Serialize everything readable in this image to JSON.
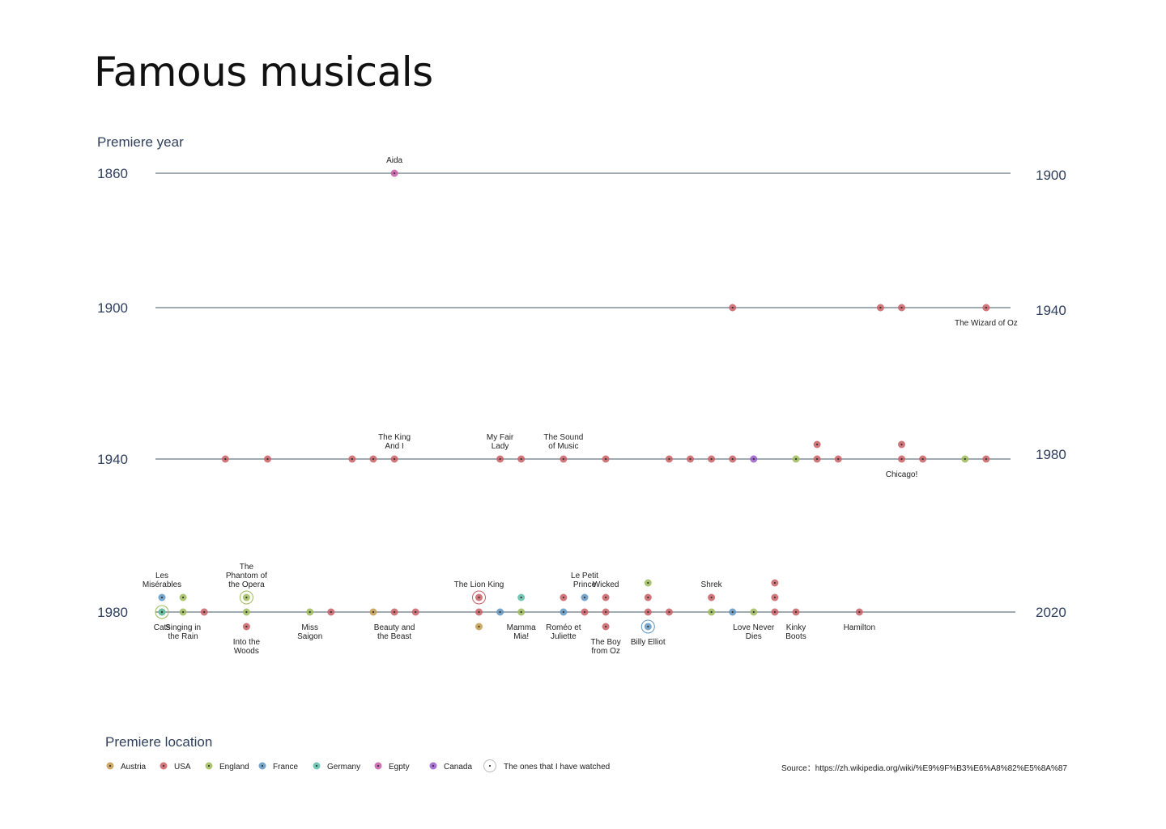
{
  "title": "Famous musicals",
  "source": "Source：https://zh.wikipedia.org/wiki/%E9%9F%B3%E6%A8%82%E5%8A%87",
  "colors": {
    "Austria": "#c49a4e",
    "USA": "#c95f64",
    "England": "#9cbb5b",
    "France": "#5f97c4",
    "Germany": "#5dbca8",
    "Egpty": "#c75ba6",
    "Canada": "#9a5bc8",
    "watched": "#bbbbbb",
    "axis": "#6b7785",
    "text": "#2f3f5c"
  },
  "chart_data": {
    "type": "scatter",
    "title": "Famous musicals",
    "ylabel": "Premiere year",
    "legend_title": "Premiere location",
    "legend_position": "bottom-left",
    "legend": [
      {
        "name": "Austria",
        "color": "#c49a4e"
      },
      {
        "name": "USA",
        "color": "#c95f64"
      },
      {
        "name": "England",
        "color": "#9cbb5b"
      },
      {
        "name": "France",
        "color": "#5f97c4"
      },
      {
        "name": "Germany",
        "color": "#5dbca8"
      },
      {
        "name": "Egpty",
        "color": "#c75ba6"
      },
      {
        "name": "Canada",
        "color": "#9a5bc8"
      },
      {
        "name": "The ones that I have watched",
        "color": "#bbbbbb",
        "ring": true
      }
    ],
    "rows": [
      {
        "start": 1860,
        "end": 1900
      },
      {
        "start": 1900,
        "end": 1940
      },
      {
        "start": 1940,
        "end": 1980
      },
      {
        "start": 1980,
        "end": 2020
      }
    ],
    "points": [
      {
        "year": 1871,
        "stack": 0,
        "loc": "Egpty",
        "name": "Aida",
        "label_pos": "above"
      },
      {
        "year": 1927,
        "stack": 0,
        "loc": "USA"
      },
      {
        "year": 1934,
        "stack": 0,
        "loc": "USA"
      },
      {
        "year": 1935,
        "stack": 0,
        "loc": "USA"
      },
      {
        "year": 1939,
        "stack": 0,
        "loc": "USA",
        "name": "The Wizard of Oz",
        "label_pos": "below"
      },
      {
        "year": 1943,
        "stack": 0,
        "loc": "USA"
      },
      {
        "year": 1945,
        "stack": 0,
        "loc": "USA"
      },
      {
        "year": 1949,
        "stack": 0,
        "loc": "USA"
      },
      {
        "year": 1950,
        "stack": 0,
        "loc": "USA"
      },
      {
        "year": 1951,
        "stack": 0,
        "loc": "USA",
        "name": "The King\nAnd I",
        "label_pos": "above"
      },
      {
        "year": 1956,
        "stack": 0,
        "loc": "USA",
        "name": "My Fair\nLady",
        "label_pos": "above"
      },
      {
        "year": 1957,
        "stack": 0,
        "loc": "USA"
      },
      {
        "year": 1959,
        "stack": 0,
        "loc": "USA",
        "name": "The Sound\nof Music",
        "label_pos": "above"
      },
      {
        "year": 1961,
        "stack": 0,
        "loc": "USA"
      },
      {
        "year": 1964,
        "stack": 0,
        "loc": "USA"
      },
      {
        "year": 1965,
        "stack": 0,
        "loc": "USA"
      },
      {
        "year": 1966,
        "stack": 0,
        "loc": "USA"
      },
      {
        "year": 1967,
        "stack": 0,
        "loc": "USA"
      },
      {
        "year": 1968,
        "stack": 0,
        "loc": "Canada"
      },
      {
        "year": 1970,
        "stack": 0,
        "loc": "England"
      },
      {
        "year": 1971,
        "stack": 0,
        "loc": "USA"
      },
      {
        "year": 1971,
        "stack": 1,
        "loc": "USA"
      },
      {
        "year": 1972,
        "stack": 0,
        "loc": "USA"
      },
      {
        "year": 1975,
        "stack": 0,
        "loc": "USA",
        "name": "Chicago!",
        "label_pos": "below"
      },
      {
        "year": 1975,
        "stack": 1,
        "loc": "USA"
      },
      {
        "year": 1976,
        "stack": 0,
        "loc": "USA"
      },
      {
        "year": 1978,
        "stack": 0,
        "loc": "England"
      },
      {
        "year": 1979,
        "stack": 0,
        "loc": "USA"
      },
      {
        "year": 1980,
        "stack": 0,
        "loc": "England",
        "watched": true,
        "name": "Cats",
        "label_pos": "below"
      },
      {
        "year": 1980,
        "stack": 1,
        "loc": "France",
        "name": "Les\nMisérables",
        "label_pos": "above"
      },
      {
        "year": 1980,
        "stack": 0,
        "loc": "Germany"
      },
      {
        "year": 1981,
        "stack": 0,
        "loc": "England",
        "name": "Singing in\nthe Rain",
        "label_pos": "below"
      },
      {
        "year": 1981,
        "stack": 1,
        "loc": "England"
      },
      {
        "year": 1982,
        "stack": 0,
        "loc": "USA"
      },
      {
        "year": 1984,
        "stack": 0,
        "loc": "England"
      },
      {
        "year": 1984,
        "stack": 1,
        "loc": "England",
        "watched": true,
        "name": "The\nPhantom of\nthe Opera",
        "label_pos": "above"
      },
      {
        "year": 1984,
        "stack": -1,
        "loc": "USA",
        "name": "Into the\nWoods",
        "label_pos": "below"
      },
      {
        "year": 1987,
        "stack": 0,
        "loc": "England",
        "name": "Miss\nSaigon",
        "label_pos": "below"
      },
      {
        "year": 1988,
        "stack": 0,
        "loc": "USA"
      },
      {
        "year": 1990,
        "stack": 0,
        "loc": "Austria"
      },
      {
        "year": 1991,
        "stack": 0,
        "loc": "USA",
        "name": "Beauty and\nthe Beast",
        "label_pos": "below"
      },
      {
        "year": 1992,
        "stack": 0,
        "loc": "USA"
      },
      {
        "year": 1995,
        "stack": 0,
        "loc": "USA"
      },
      {
        "year": 1995,
        "stack": 1,
        "loc": "USA",
        "watched": true,
        "name": "The Lion King",
        "label_pos": "above"
      },
      {
        "year": 1995,
        "stack": -1,
        "loc": "Austria"
      },
      {
        "year": 1996,
        "stack": 0,
        "loc": "France"
      },
      {
        "year": 1997,
        "stack": 0,
        "loc": "England",
        "name": "Mamma\nMia!",
        "label_pos": "below"
      },
      {
        "year": 1997,
        "stack": 1,
        "loc": "Germany"
      },
      {
        "year": 1999,
        "stack": 0,
        "loc": "France",
        "name": "Roméo et\nJuliette",
        "label_pos": "below"
      },
      {
        "year": 1999,
        "stack": 1,
        "loc": "USA"
      },
      {
        "year": 2000,
        "stack": 0,
        "loc": "USA"
      },
      {
        "year": 2000,
        "stack": 1,
        "loc": "France",
        "name": "Le Petit\nPrince",
        "label_pos": "above"
      },
      {
        "year": 2001,
        "stack": 0,
        "loc": "USA"
      },
      {
        "year": 2001,
        "stack": 1,
        "loc": "USA",
        "name": "Wicked",
        "label_pos": "above"
      },
      {
        "year": 2001,
        "stack": -1,
        "loc": "USA",
        "name": "The Boy\nfrom Oz",
        "label_pos": "below"
      },
      {
        "year": 2003,
        "stack": 0,
        "loc": "USA"
      },
      {
        "year": 2003,
        "stack": 1,
        "loc": "USA"
      },
      {
        "year": 2003,
        "stack": 2,
        "loc": "England"
      },
      {
        "year": 2003,
        "stack": -1,
        "loc": "France",
        "watched": true,
        "name": "Billy Elliot",
        "label_pos": "below"
      },
      {
        "year": 2004,
        "stack": 0,
        "loc": "USA"
      },
      {
        "year": 2006,
        "stack": 0,
        "loc": "England"
      },
      {
        "year": 2006,
        "stack": 1,
        "loc": "USA",
        "name": "Shrek",
        "label_pos": "above"
      },
      {
        "year": 2007,
        "stack": 0,
        "loc": "France"
      },
      {
        "year": 2008,
        "stack": 0,
        "loc": "England",
        "name": "Love Never\nDies",
        "label_pos": "below"
      },
      {
        "year": 2009,
        "stack": 0,
        "loc": "USA"
      },
      {
        "year": 2009,
        "stack": 1,
        "loc": "USA"
      },
      {
        "year": 2009,
        "stack": 2,
        "loc": "USA"
      },
      {
        "year": 2010,
        "stack": 0,
        "loc": "USA",
        "name": "Kinky\nBoots",
        "label_pos": "below"
      },
      {
        "year": 2013,
        "stack": 0,
        "loc": "USA",
        "name": "Hamilton",
        "label_pos": "below"
      }
    ]
  }
}
